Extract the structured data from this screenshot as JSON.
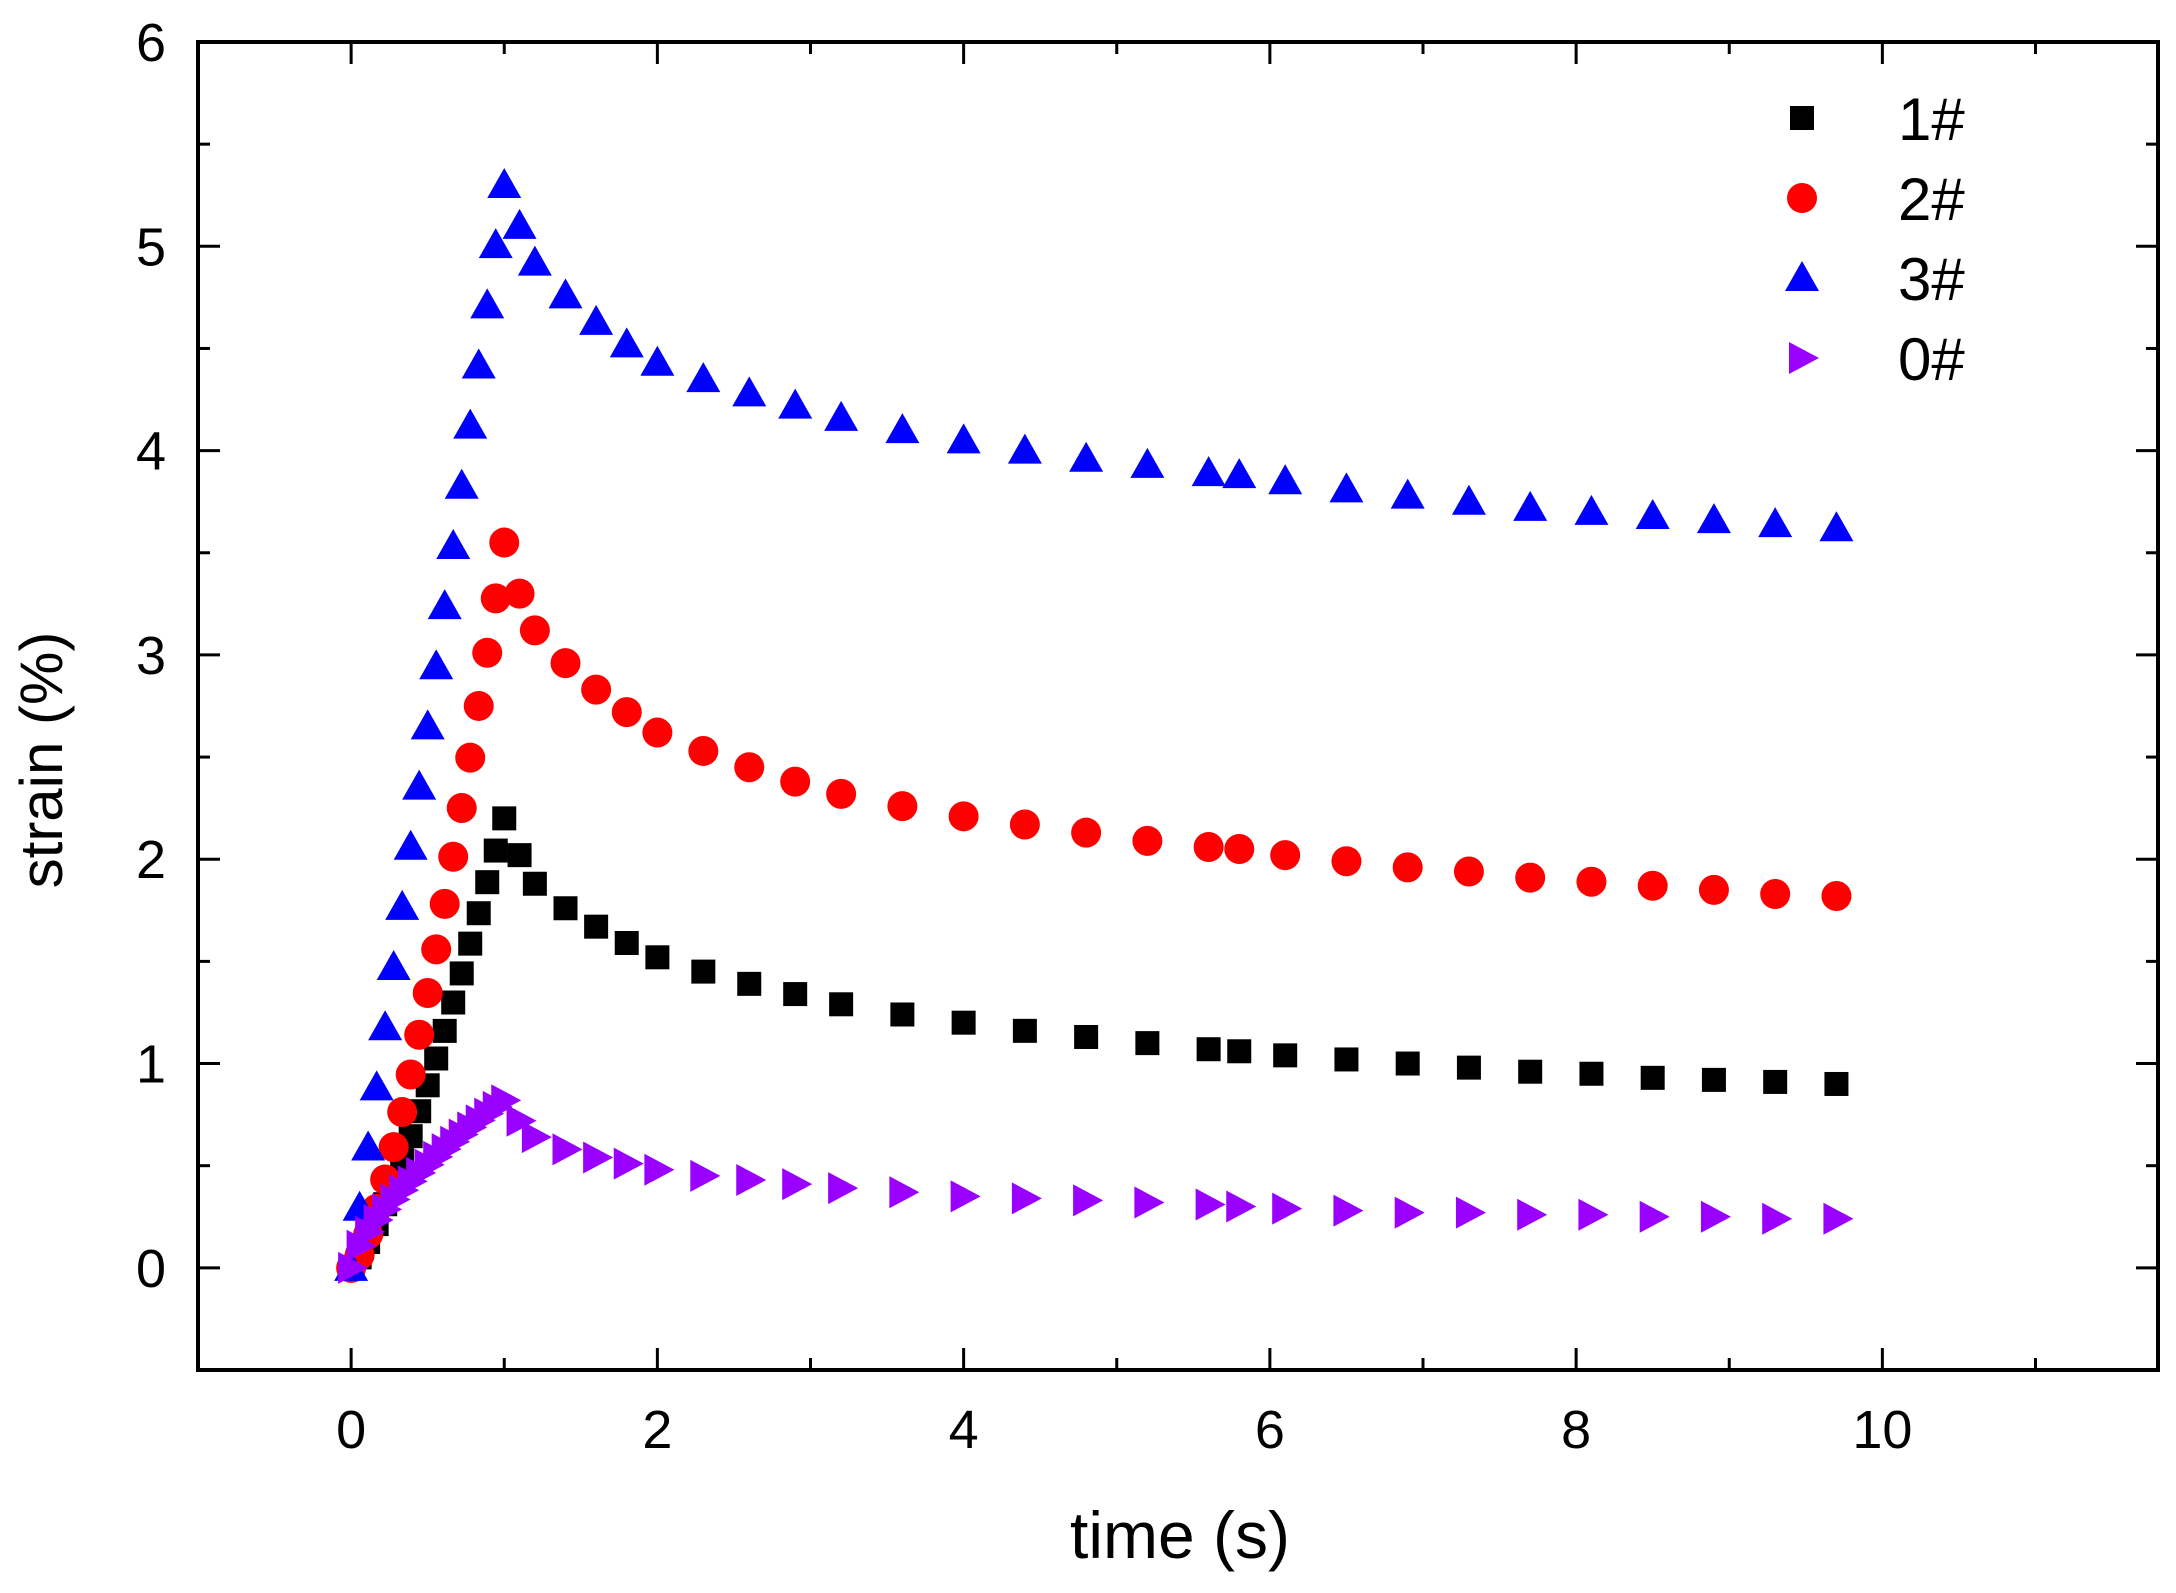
{
  "chart_data": {
    "type": "scatter",
    "title": "",
    "xlabel": "time (s)",
    "ylabel": "strain (%)",
    "xlim": [
      -1,
      11.8
    ],
    "ylim": [
      -0.5,
      6
    ],
    "xticks": [
      0,
      2,
      4,
      6,
      8,
      10
    ],
    "xtick_labels": [
      "0",
      "2",
      "4",
      "6",
      "8",
      "10"
    ],
    "yticks": [
      0,
      1,
      2,
      3,
      4,
      5,
      6
    ],
    "ytick_labels": [
      "0",
      "1",
      "2",
      "3",
      "4",
      "5",
      "6"
    ],
    "grid": false,
    "legend_position": "top-right",
    "series": [
      {
        "name": "1#",
        "marker": "square",
        "color": "#000000",
        "peak": 2.2,
        "plateau": 0.85,
        "load_shape": 1.3,
        "recovery_times": [
          1.1,
          1.2,
          1.4,
          1.6,
          1.8,
          2.0,
          2.3,
          2.6,
          2.9,
          3.2,
          3.6,
          4.0,
          4.4,
          4.8,
          5.2,
          5.6,
          5.8,
          6.1,
          6.5,
          6.9,
          7.3,
          7.7,
          8.1,
          8.5,
          8.9,
          9.3,
          9.7
        ],
        "recovery_values": [
          2.02,
          1.88,
          1.76,
          1.67,
          1.59,
          1.52,
          1.45,
          1.39,
          1.34,
          1.29,
          1.24,
          1.2,
          1.16,
          1.13,
          1.1,
          1.07,
          1.06,
          1.04,
          1.02,
          1.0,
          0.98,
          0.96,
          0.95,
          0.93,
          0.92,
          0.91,
          0.9
        ]
      },
      {
        "name": "2#",
        "marker": "circle",
        "color": "#ff0000",
        "peak": 3.55,
        "plateau": 1.7,
        "load_shape": 1.4,
        "recovery_times": [
          1.1,
          1.2,
          1.4,
          1.6,
          1.8,
          2.0,
          2.3,
          2.6,
          2.9,
          3.2,
          3.6,
          4.0,
          4.4,
          4.8,
          5.2,
          5.6,
          5.8,
          6.1,
          6.5,
          6.9,
          7.3,
          7.7,
          8.1,
          8.5,
          8.9,
          9.3,
          9.7
        ],
        "recovery_values": [
          3.3,
          3.12,
          2.96,
          2.83,
          2.72,
          2.62,
          2.53,
          2.45,
          2.38,
          2.32,
          2.26,
          2.21,
          2.17,
          2.13,
          2.09,
          2.06,
          2.05,
          2.02,
          1.99,
          1.96,
          1.94,
          1.91,
          1.89,
          1.87,
          1.85,
          1.83,
          1.82
        ]
      },
      {
        "name": "3#",
        "marker": "triangle-up",
        "color": "#0000ff",
        "peak": 5.3,
        "plateau": 3.4,
        "load_shape": 1.0,
        "recovery_times": [
          1.1,
          1.2,
          1.4,
          1.6,
          1.8,
          2.0,
          2.3,
          2.6,
          2.9,
          3.2,
          3.6,
          4.0,
          4.4,
          4.8,
          5.2,
          5.6,
          5.8,
          6.1,
          6.5,
          6.9,
          7.3,
          7.7,
          8.1,
          8.5,
          8.9,
          9.3,
          9.7
        ],
        "recovery_values": [
          5.1,
          4.92,
          4.76,
          4.63,
          4.52,
          4.43,
          4.35,
          4.28,
          4.22,
          4.16,
          4.1,
          4.05,
          4.0,
          3.96,
          3.93,
          3.89,
          3.88,
          3.85,
          3.81,
          3.78,
          3.75,
          3.72,
          3.7,
          3.68,
          3.66,
          3.64,
          3.62
        ]
      },
      {
        "name": "0#",
        "marker": "triangle-right",
        "color": "#9900ff",
        "peak": 0.82,
        "plateau": 0.2,
        "load_shape": 0.7,
        "recovery_times": [
          1.1,
          1.2,
          1.4,
          1.6,
          1.8,
          2.0,
          2.3,
          2.6,
          2.9,
          3.2,
          3.6,
          4.0,
          4.4,
          4.8,
          5.2,
          5.6,
          5.8,
          6.1,
          6.5,
          6.9,
          7.3,
          7.7,
          8.1,
          8.5,
          8.9,
          9.3,
          9.7
        ],
        "recovery_values": [
          0.72,
          0.64,
          0.58,
          0.54,
          0.51,
          0.48,
          0.45,
          0.43,
          0.41,
          0.39,
          0.37,
          0.35,
          0.34,
          0.33,
          0.32,
          0.31,
          0.3,
          0.29,
          0.28,
          0.27,
          0.27,
          0.26,
          0.26,
          0.25,
          0.25,
          0.24,
          0.24
        ]
      }
    ]
  }
}
